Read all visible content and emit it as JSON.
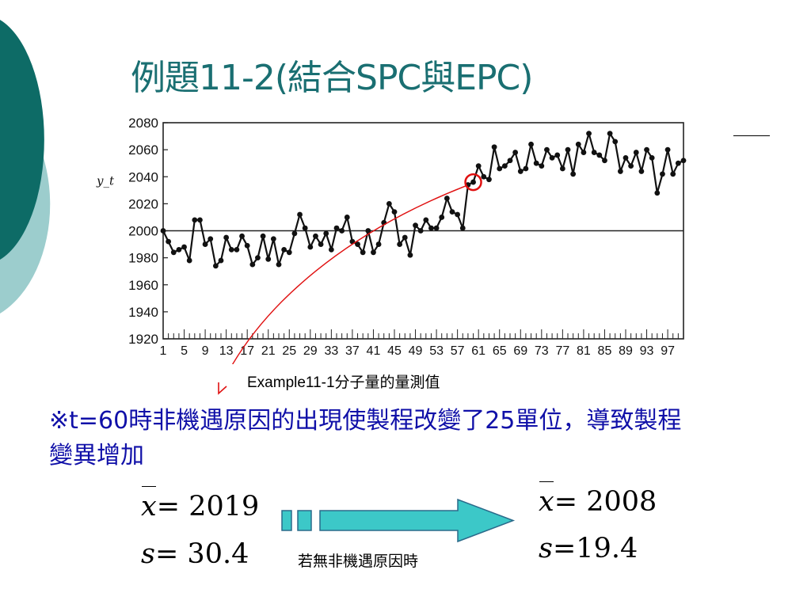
{
  "slide": {
    "title": "例題11-2(結合SPC與EPC)",
    "caption": "Example11-1分子量的量測值",
    "note": "※t=60時非機遇原因的出現使製程改變了25單位，導致製程變異增加",
    "arrow_label": "若無非機遇原因時",
    "before": {
      "mean_symbol": "x",
      "mean_value": "= 2019",
      "sd_symbol": "s",
      "sd_value": "= 30.4"
    },
    "after": {
      "mean_symbol": "x",
      "mean_value": "= 2008",
      "sd_symbol": "s",
      "sd_value": "=19.4"
    },
    "colors": {
      "title": "#1a6f72",
      "note": "#1010a8",
      "arrow": "#3cc8c8",
      "marker": "#e01010",
      "deco_dark": "#0d6b66",
      "deco_light": "#9ccdcd"
    }
  },
  "chart_data": {
    "type": "line",
    "ylabel": "y_t",
    "ylim": [
      1920,
      2080
    ],
    "yticks": [
      1920,
      1940,
      1960,
      1980,
      2000,
      2020,
      2040,
      2060,
      2080
    ],
    "xlim": [
      1,
      100
    ],
    "xticks": [
      "1",
      "5",
      "9",
      "13",
      "17",
      "21",
      "25",
      "29",
      "33",
      "37",
      "41",
      "45",
      "49",
      "53",
      "57",
      "61",
      "65",
      "69",
      "73",
      "77",
      "81",
      "85",
      "89",
      "93",
      "97"
    ],
    "reference_line": 2000,
    "highlight": {
      "x": 60,
      "y": 2036
    },
    "x": [
      1,
      2,
      3,
      4,
      5,
      6,
      7,
      8,
      9,
      10,
      11,
      12,
      13,
      14,
      15,
      16,
      17,
      18,
      19,
      20,
      21,
      22,
      23,
      24,
      25,
      26,
      27,
      28,
      29,
      30,
      31,
      32,
      33,
      34,
      35,
      36,
      37,
      38,
      39,
      40,
      41,
      42,
      43,
      44,
      45,
      46,
      47,
      48,
      49,
      50,
      51,
      52,
      53,
      54,
      55,
      56,
      57,
      58,
      59,
      60,
      61,
      62,
      63,
      64,
      65,
      66,
      67,
      68,
      69,
      70,
      71,
      72,
      73,
      74,
      75,
      76,
      77,
      78,
      79,
      80,
      81,
      82,
      83,
      84,
      85,
      86,
      87,
      88,
      89,
      90,
      91,
      92,
      93,
      94,
      95,
      96,
      97,
      98,
      99,
      100
    ],
    "values": [
      2000,
      1992,
      1984,
      1986,
      1988,
      1978,
      2008,
      2008,
      1990,
      1994,
      1974,
      1978,
      1995,
      1986,
      1986,
      1996,
      1989,
      1975,
      1980,
      1996,
      1979,
      1994,
      1975,
      1986,
      1984,
      1998,
      2012,
      2002,
      1988,
      1996,
      1990,
      1998,
      1986,
      2002,
      2000,
      2010,
      1992,
      1990,
      1984,
      2000,
      1984,
      1990,
      2006,
      2020,
      2014,
      1990,
      1995,
      1982,
      2004,
      2000,
      2008,
      2002,
      2002,
      2010,
      2024,
      2014,
      2012,
      2002,
      2034,
      2036,
      2048,
      2040,
      2038,
      2062,
      2046,
      2048,
      2052,
      2058,
      2044,
      2046,
      2064,
      2050,
      2048,
      2060,
      2054,
      2056,
      2046,
      2060,
      2042,
      2064,
      2058,
      2072,
      2058,
      2056,
      2052,
      2072,
      2066,
      2044,
      2054,
      2048,
      2058,
      2044,
      2060,
      2054,
      2028,
      2042,
      2060,
      2042,
      2050,
      2052
    ]
  }
}
